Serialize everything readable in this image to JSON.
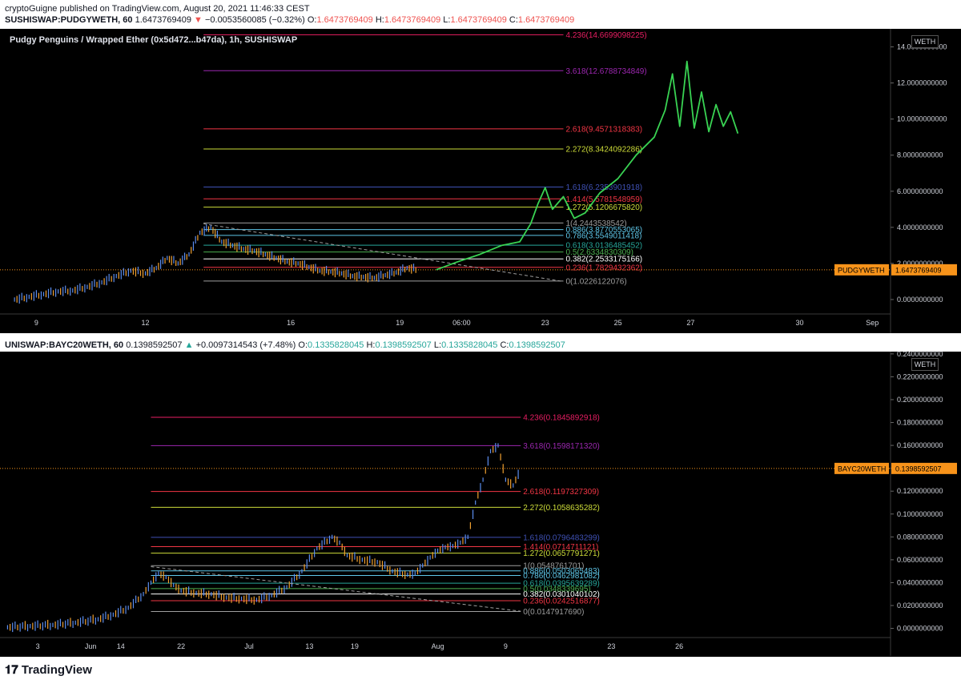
{
  "header": {
    "published": "cryptoGuigne published on TradingView.com, August 20, 2021 11:46:33 CEST"
  },
  "panel1": {
    "symbol": "SUSHISWAP:PUDGYWETH, 60",
    "last": "1.6473769409",
    "change_arrow": "▼",
    "change": "−0.0053560085 (−0.32%)",
    "o_label": "O:",
    "o": "1.6473769409",
    "h_label": "H:",
    "h": "1.6473769409",
    "l_label": "L:",
    "l": "1.6473769409",
    "c_label": "C:",
    "c": "1.6473769409",
    "title": "Pudgy Penguins / Wrapped Ether (0x5d472...b47da), 1h, SUSHISWAP",
    "unit": "WETH",
    "price_tag_label": "PUDGYWETH",
    "price_tag_value": "1.6473769409"
  },
  "panel2": {
    "symbol": "UNISWAP:BAYC20WETH, 60",
    "last": "0.1398592507",
    "change_arrow": "▲",
    "change": "+0.0097314543 (+7.48%)",
    "o_label": "O:",
    "o": "0.1335828045",
    "h_label": "H:",
    "h": "0.1398592507",
    "l_label": "L:",
    "l": "0.1335828045",
    "c_label": "C:",
    "c": "0.1398592507",
    "unit": "WETH",
    "price_tag_label": "BAYC20WETH",
    "price_tag_value": "0.1398592507"
  },
  "brand": "TradingView",
  "colors": {
    "background": "#000000",
    "up": "#5b8def",
    "down": "#f0a030",
    "projection": "#39d353",
    "price_tag": "#f7931a"
  },
  "chart_data": [
    {
      "type": "candlestick",
      "title": "Pudgy Penguins / Wrapped Ether (0x5d472...b47da), 1h, SUSHISWAP",
      "ylim": [
        -0.8,
        15.0
      ],
      "y_ticks": [
        "0.0000000000",
        "2.0000000000",
        "4.0000000000",
        "6.0000000000",
        "8.0000000000",
        "10.0000000000",
        "12.0000000000",
        "14.0000000000"
      ],
      "y_tick_values": [
        0,
        2,
        4,
        6,
        8,
        10,
        12,
        14
      ],
      "x_ticks": [
        "9",
        "12",
        "16",
        "19",
        "06:00",
        "23",
        "25",
        "27",
        "30",
        "Sep"
      ],
      "x_tick_positions": [
        0.0,
        3.0,
        7.0,
        10.0,
        11.7,
        14.0,
        16.0,
        18.0,
        21.0,
        23.0
      ],
      "xlim": [
        -1.0,
        23.5
      ],
      "last_price": 1.6473769409,
      "series": [
        {
          "name": "PUDGYWETH",
          "x": [
            -0.6,
            -0.2,
            0.2,
            0.6,
            1.0,
            1.4,
            1.8,
            2.2,
            2.6,
            3.0,
            3.3,
            3.6,
            3.9,
            4.2,
            4.5,
            4.8,
            5.1,
            5.4,
            5.7,
            6.0,
            6.3,
            6.6,
            6.9,
            7.2,
            7.5,
            7.8,
            8.1,
            8.4,
            8.7,
            9.0,
            9.3,
            9.6,
            9.9,
            10.2,
            10.5
          ],
          "values": [
            0.0,
            0.15,
            0.3,
            0.45,
            0.5,
            0.7,
            0.95,
            1.3,
            1.6,
            1.45,
            1.75,
            2.3,
            2.0,
            2.5,
            3.7,
            4.0,
            3.2,
            3.0,
            2.8,
            2.7,
            2.5,
            2.3,
            2.1,
            2.0,
            1.8,
            1.6,
            1.55,
            1.45,
            1.3,
            1.25,
            1.2,
            1.35,
            1.5,
            1.75,
            1.65
          ]
        }
      ],
      "fib_levels": [
        {
          "ratio": "0",
          "value": 1.0226122076,
          "label": "0(1.0226122076)",
          "color": "#9e9e9e"
        },
        {
          "ratio": "0.236",
          "value": 1.7829432362,
          "label": "0.236(1.7829432362)",
          "color": "#f23645"
        },
        {
          "ratio": "0.382",
          "value": 2.2533175166,
          "label": "0.382(2.2533175166)",
          "color": "#ffffff"
        },
        {
          "ratio": "0.5",
          "value": 2.6334830309,
          "label": "0.5(2.6334830309)",
          "color": "#4caf50"
        },
        {
          "ratio": "0.618",
          "value": 3.0136485452,
          "label": "0.618(3.0136485452)",
          "color": "#26a69a"
        },
        {
          "ratio": "0.786",
          "value": 3.5549011418,
          "label": "0.786(3.5549011418)",
          "color": "#5ec6e8"
        },
        {
          "ratio": "0.886",
          "value": 3.8770553065,
          "label": "0.886(3.8770553065)",
          "color": "#5ec6e8"
        },
        {
          "ratio": "1",
          "value": 4.2443538542,
          "label": "1(4.2443538542)",
          "color": "#9e9e9e"
        },
        {
          "ratio": "1.272",
          "value": 5.120667582,
          "label": "1.272(5.1206675820)",
          "color": "#cddc39"
        },
        {
          "ratio": "1.414",
          "value": 5.5781548959,
          "label": "1.414(5.5781548959)",
          "color": "#f23645"
        },
        {
          "ratio": "1.618",
          "value": 6.2353901918,
          "label": "1.618(6.2353901918)",
          "color": "#3f51b5"
        },
        {
          "ratio": "2.272",
          "value": 8.3424092286,
          "label": "2.272(8.3424092286)",
          "color": "#cddc39"
        },
        {
          "ratio": "2.618",
          "value": 9.4571318383,
          "label": "2.618(9.4571318383)",
          "color": "#f23645"
        },
        {
          "ratio": "3.618",
          "value": 12.6788734849,
          "label": "3.618(12.6788734849)",
          "color": "#9c27b0"
        },
        {
          "ratio": "4.236",
          "value": 14.6699098225,
          "label": "4.236(14.6699098225)",
          "color": "#e91e63"
        }
      ],
      "projection": {
        "x": [
          11.0,
          11.6,
          12.2,
          12.8,
          13.3,
          13.6,
          13.8,
          14.0,
          14.2,
          14.5,
          14.8,
          15.1,
          15.5,
          16.0,
          16.5,
          17.0,
          17.3,
          17.5,
          17.7,
          17.9,
          18.1,
          18.3,
          18.5,
          18.7,
          18.9,
          19.1,
          19.3
        ],
        "values": [
          1.65,
          2.1,
          2.5,
          3.0,
          3.2,
          4.2,
          5.3,
          6.2,
          5.0,
          5.7,
          4.5,
          4.8,
          5.9,
          6.7,
          8.0,
          9.0,
          10.5,
          12.5,
          9.6,
          13.2,
          9.5,
          11.5,
          9.3,
          10.8,
          9.6,
          10.4,
          9.2
        ]
      }
    },
    {
      "type": "candlestick",
      "ylim": [
        -0.008,
        0.242
      ],
      "y_ticks": [
        "0.0000000000",
        "0.0200000000",
        "0.0400000000",
        "0.0600000000",
        "0.0800000000",
        "0.1000000000",
        "0.1200000000",
        "0.1400000000",
        "0.1600000000",
        "0.1800000000",
        "0.2000000000",
        "0.2200000000",
        "0.2400000000"
      ],
      "y_tick_values": [
        0,
        0.02,
        0.04,
        0.06,
        0.08,
        0.1,
        0.12,
        0.14,
        0.16,
        0.18,
        0.2,
        0.22,
        0.24
      ],
      "x_ticks": [
        "3",
        "Jun",
        "14",
        "22",
        "Jul",
        "13",
        "19",
        "Aug",
        "9",
        "23",
        "26"
      ],
      "x_tick_positions": [
        3,
        10,
        14,
        22,
        31,
        39,
        45,
        56,
        65,
        79,
        88
      ],
      "xlim": [
        -2,
        116
      ],
      "last_price": 0.1398592507,
      "series": [
        {
          "name": "BAYC20WETH",
          "x": [
            -1,
            2,
            5,
            8,
            11,
            13,
            15,
            17,
            18,
            19,
            20,
            21,
            22,
            24,
            26,
            28,
            30,
            32,
            34,
            36,
            38,
            40,
            42,
            43,
            44,
            46,
            48,
            50,
            52,
            53,
            54,
            55,
            56,
            57,
            58,
            59,
            60,
            61,
            62,
            63,
            64,
            65,
            66,
            67
          ],
          "values": [
            0.001,
            0.002,
            0.003,
            0.005,
            0.008,
            0.012,
            0.018,
            0.03,
            0.04,
            0.048,
            0.045,
            0.038,
            0.033,
            0.031,
            0.03,
            0.027,
            0.026,
            0.025,
            0.029,
            0.036,
            0.05,
            0.07,
            0.08,
            0.075,
            0.064,
            0.06,
            0.058,
            0.05,
            0.047,
            0.048,
            0.055,
            0.062,
            0.068,
            0.071,
            0.072,
            0.075,
            0.08,
            0.11,
            0.13,
            0.155,
            0.16,
            0.13,
            0.125,
            0.14
          ]
        }
      ],
      "fib_levels": [
        {
          "ratio": "0",
          "value": 0.014791769,
          "label": "0(0.0147917690)",
          "color": "#9e9e9e"
        },
        {
          "ratio": "0.236",
          "value": 0.0242516877,
          "label": "0.236(0.0242516877)",
          "color": "#f23645"
        },
        {
          "ratio": "0.382",
          "value": 0.0301040102,
          "label": "0.382(0.0301040102)",
          "color": "#ffffff"
        },
        {
          "ratio": "0.5",
          "value": 0.0348339695,
          "label": "0.5(0.0348339695)",
          "color": "#4caf50"
        },
        {
          "ratio": "0.618",
          "value": 0.0395639289,
          "label": "0.618(0.0395639289)",
          "color": "#26a69a"
        },
        {
          "ratio": "0.786",
          "value": 0.0462981082,
          "label": "0.786(0.0462981082)",
          "color": "#5ec6e8"
        },
        {
          "ratio": "0.886",
          "value": 0.0503065483,
          "label": "0.886(0.0503065483)",
          "color": "#5ec6e8"
        },
        {
          "ratio": "1",
          "value": 0.0548761701,
          "label": "1(0.0548761701)",
          "color": "#9e9e9e"
        },
        {
          "ratio": "1.272",
          "value": 0.0657791271,
          "label": "1.272(0.0657791271)",
          "color": "#cddc39"
        },
        {
          "ratio": "1.414",
          "value": 0.0714711121,
          "label": "1.414(0.0714711121)",
          "color": "#f23645"
        },
        {
          "ratio": "1.618",
          "value": 0.0796483299,
          "label": "1.618(0.0796483299)",
          "color": "#3f51b5"
        },
        {
          "ratio": "2.272",
          "value": 0.1058635282,
          "label": "2.272(0.1058635282)",
          "color": "#cddc39"
        },
        {
          "ratio": "2.618",
          "value": 0.1197327309,
          "label": "2.618(0.1197327309)",
          "color": "#f23645"
        },
        {
          "ratio": "3.618",
          "value": 0.159817132,
          "label": "3.618(0.1598171320)",
          "color": "#9c27b0"
        },
        {
          "ratio": "4.236",
          "value": 0.1845892918,
          "label": "4.236(0.1845892918)",
          "color": "#e91e63"
        }
      ]
    }
  ]
}
